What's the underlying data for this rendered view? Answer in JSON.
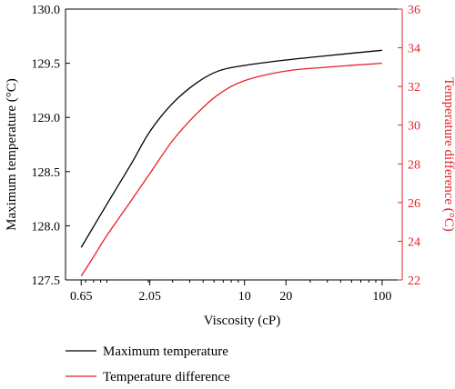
{
  "chart_data": {
    "type": "line",
    "title": "",
    "xlabel": "Viscosity (cP)",
    "ylabel": "Maximum temperature (°C)",
    "y2label": "Temperature difference (°C)",
    "x_scale": "log",
    "xlim": [
      0.5,
      140
    ],
    "x_ticks": [
      0.65,
      2.05,
      10,
      20,
      100
    ],
    "x_tick_labels": [
      "0.65",
      "2.05",
      "10",
      "20",
      "100"
    ],
    "x_minor_ticks": [
      0.7,
      0.8,
      0.9,
      1,
      2,
      3,
      4,
      5,
      6,
      7,
      8,
      9,
      30,
      40,
      50,
      60,
      70,
      80,
      90
    ],
    "ylim": [
      127.5,
      130.0
    ],
    "y_ticks": [
      127.5,
      128.0,
      128.5,
      129.0,
      129.5,
      130.0
    ],
    "y_tick_labels": [
      "127.5",
      "128.0",
      "128.5",
      "129.0",
      "129.5",
      "130.0"
    ],
    "y2lim": [
      22,
      36
    ],
    "y2_ticks": [
      22,
      24,
      26,
      28,
      30,
      32,
      34,
      36
    ],
    "y2_tick_labels": [
      "22",
      "24",
      "26",
      "28",
      "30",
      "32",
      "34",
      "36"
    ],
    "grid": false,
    "legend_position": "bottom",
    "colors": {
      "series1": "#000000",
      "series2": "#e8202a",
      "axis_left": "#000000",
      "axis_right": "#e8202a"
    },
    "series": [
      {
        "name": "Maximum temperature",
        "axis": "left",
        "color": "#000000",
        "x": [
          0.65,
          1.0,
          1.5,
          2.05,
          3.0,
          4.5,
          6.5,
          10,
          20,
          40,
          100
        ],
        "y": [
          127.8,
          128.2,
          128.57,
          128.87,
          129.13,
          129.32,
          129.43,
          129.48,
          129.53,
          129.57,
          129.62
        ]
      },
      {
        "name": "Temperature difference",
        "axis": "right",
        "color": "#e8202a",
        "x": [
          0.65,
          0.8,
          1.0,
          1.5,
          2.05,
          3.0,
          4.5,
          6.5,
          10,
          20,
          40,
          100
        ],
        "y": [
          22.2,
          23.2,
          24.3,
          26.1,
          27.5,
          29.2,
          30.6,
          31.6,
          32.3,
          32.8,
          33.0,
          33.2
        ]
      }
    ]
  }
}
